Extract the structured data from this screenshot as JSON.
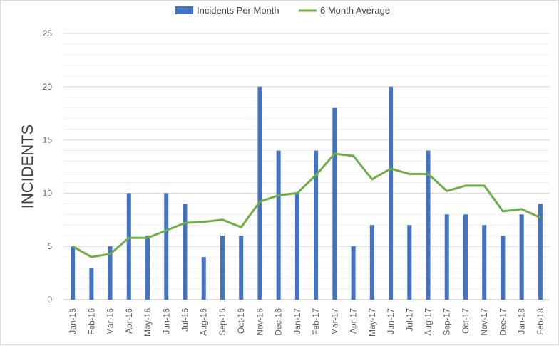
{
  "colors": {
    "bar": "#4472C4",
    "line": "#70AD47",
    "grid_major": "#d9d9d9",
    "grid_minor": "#efefef",
    "text": "#595959"
  },
  "chart_data": {
    "type": "bar",
    "title": "",
    "xlabel": "",
    "ylabel": "INCIDENTS",
    "ylim": [
      0,
      25
    ],
    "yticks": [
      0,
      5,
      10,
      15,
      20,
      25
    ],
    "grid": true,
    "legend": "top-center",
    "categories": [
      "Jan-16",
      "Feb-16",
      "Mar-16",
      "Apr-16",
      "May-16",
      "Jun-16",
      "Jul-16",
      "Aug-16",
      "Sep-16",
      "Oct-16",
      "Nov-16",
      "Dec-16",
      "Jan-17",
      "Feb-17",
      "Mar-17",
      "Apr-17",
      "May-17",
      "Jun-17",
      "Jul-17",
      "Aug-17",
      "Sep-17",
      "Oct-17",
      "Nov-17",
      "Dec-17",
      "Jan-18",
      "Feb-18"
    ],
    "series": [
      {
        "name": "Incidents Per Month",
        "type": "bar",
        "values": [
          5,
          3,
          5,
          10,
          6,
          10,
          9,
          4,
          6,
          6,
          20,
          14,
          10,
          14,
          18,
          5,
          7,
          20,
          7,
          14,
          8,
          8,
          7,
          6,
          8,
          9
        ]
      },
      {
        "name": "6 Month Average",
        "type": "line",
        "values": [
          5.0,
          4.0,
          4.3,
          5.8,
          5.8,
          6.5,
          7.2,
          7.3,
          7.5,
          6.8,
          9.2,
          9.8,
          10.0,
          11.7,
          13.7,
          13.5,
          11.3,
          12.3,
          11.8,
          11.8,
          10.2,
          10.7,
          10.7,
          8.3,
          8.5,
          7.7
        ]
      }
    ]
  }
}
